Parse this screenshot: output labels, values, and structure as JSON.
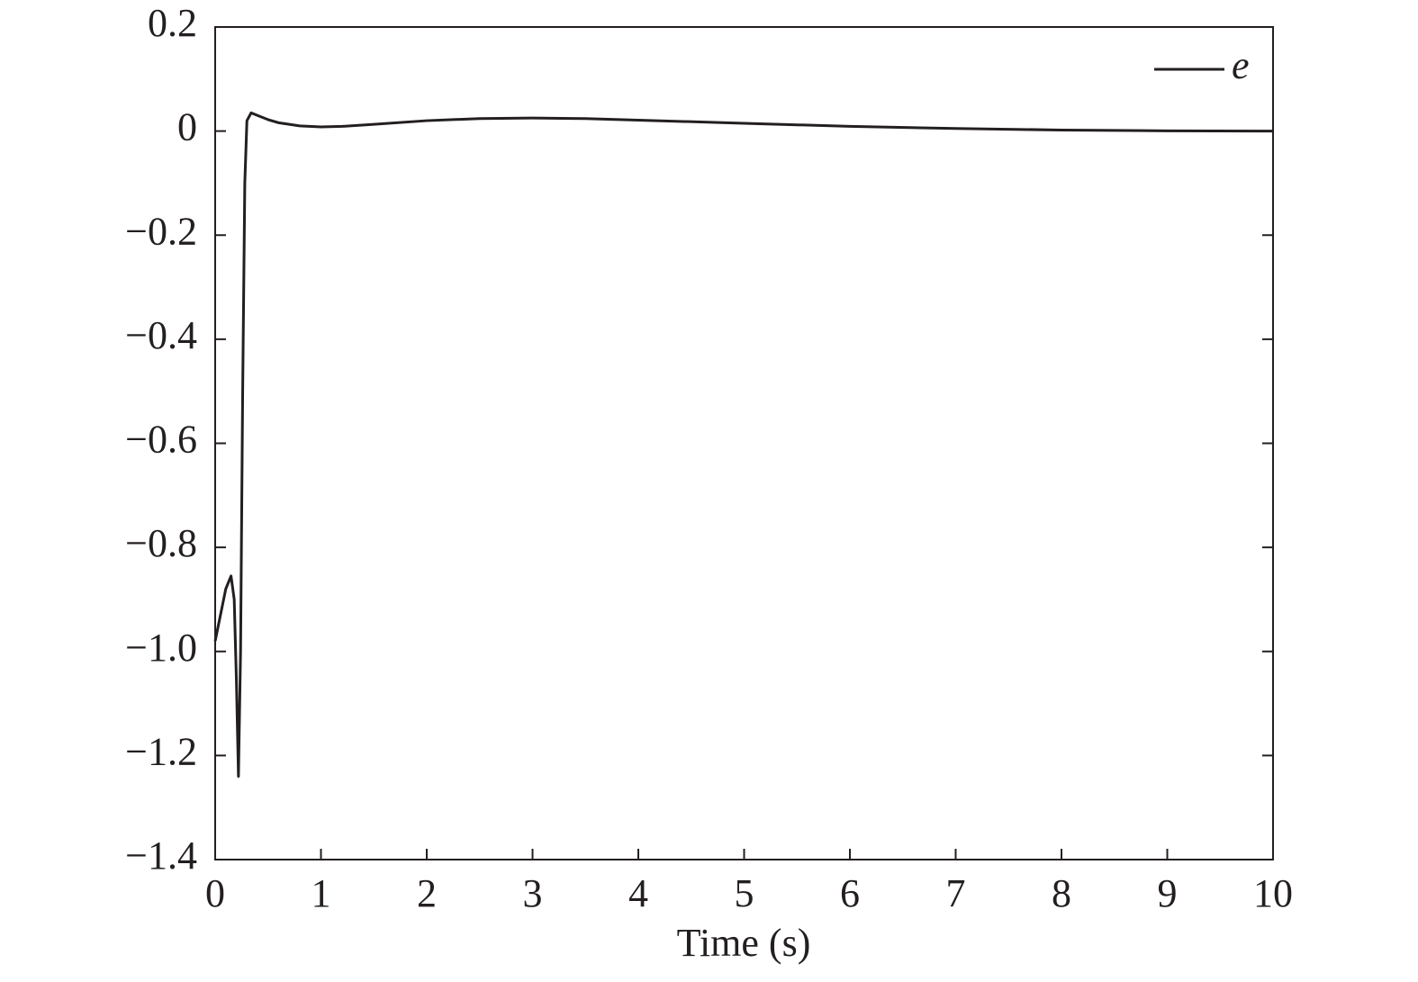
{
  "chart_data": {
    "type": "line",
    "x_label": "Time (s)",
    "x": [
      0,
      0.05,
      0.1,
      0.15,
      0.18,
      0.2,
      0.22,
      0.24,
      0.26,
      0.28,
      0.3,
      0.34,
      0.4,
      0.5,
      0.6,
      0.8,
      1.0,
      1.2,
      1.5,
      2.0,
      2.5,
      3.0,
      3.5,
      4.0,
      5.0,
      6.0,
      7.0,
      8.0,
      9.0,
      10.0
    ],
    "series": [
      {
        "name": "e",
        "color": "#231f20",
        "values": [
          -0.98,
          -0.93,
          -0.88,
          -0.855,
          -0.9,
          -1.05,
          -1.24,
          -1.0,
          -0.5,
          -0.1,
          0.02,
          0.035,
          0.03,
          0.022,
          0.016,
          0.01,
          0.008,
          0.009,
          0.013,
          0.02,
          0.024,
          0.025,
          0.024,
          0.021,
          0.015,
          0.009,
          0.005,
          0.002,
          0.0005,
          0
        ]
      }
    ],
    "xlim": [
      0,
      10
    ],
    "xticks": [
      0,
      1,
      2,
      3,
      4,
      5,
      6,
      7,
      8,
      9,
      10
    ],
    "ylim": [
      -1.4,
      0.2
    ],
    "yticks": [
      {
        "value": -1.4,
        "label": "−1.4"
      },
      {
        "value": -1.2,
        "label": "−1.2"
      },
      {
        "value": -1.0,
        "label": "−1.0"
      },
      {
        "value": -0.8,
        "label": "−0.8"
      },
      {
        "value": -0.6,
        "label": "−0.6"
      },
      {
        "value": -0.4,
        "label": "−0.4"
      },
      {
        "value": -0.2,
        "label": "−0.2"
      },
      0,
      0.2
    ],
    "grid": false,
    "legend": "upper right"
  }
}
